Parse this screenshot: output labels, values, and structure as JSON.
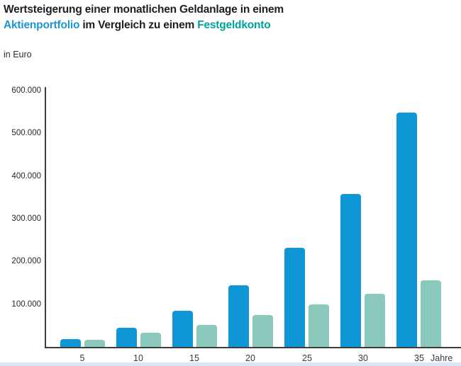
{
  "header": {
    "title_line1": "Wertsteigerung einer monatlichen Geldanlage in einem",
    "title_line2_highlight1": "Aktienportfolio",
    "title_line2_middle": " im Vergleich zu einem ",
    "title_line2_highlight2": "Festgeldkonto",
    "unit_label": "in Euro"
  },
  "colors": {
    "aktien_bar": "#0e96d6",
    "festgeld_bar": "#8cc9bd",
    "title_blue": "#1e96d4",
    "title_teal": "#00a39b",
    "title_dark": "#1d1e22",
    "axis_line": "#3d3d3d",
    "bottom_strip": "#d9e6f1"
  },
  "chart_data": {
    "type": "bar",
    "title": "Wertsteigerung einer monatlichen Geldanlage in einem Aktienportfolio im Vergleich zu einem Festgeldkonto",
    "ylabel": "in Euro",
    "xlabel": "Jahre",
    "x_axis_suffix": "Jahre",
    "categories": [
      "5",
      "10",
      "15",
      "20",
      "25",
      "30",
      "35"
    ],
    "series": [
      {
        "name": "Aktienportfolio",
        "color": "#0e96d6",
        "values": [
          19000,
          45000,
          85000,
          145000,
          232000,
          358000,
          548000
        ]
      },
      {
        "name": "Festgeldkonto",
        "color": "#8cc9bd",
        "values": [
          16000,
          33000,
          52000,
          74000,
          100000,
          125000,
          155000
        ]
      }
    ],
    "ylim": [
      0,
      600000
    ],
    "y_ticks": [
      {
        "value": 600000,
        "label": "600.000"
      },
      {
        "value": 500000,
        "label": "500.000"
      },
      {
        "value": 400000,
        "label": "400.000"
      },
      {
        "value": 300000,
        "label": "300.000"
      },
      {
        "value": 200000,
        "label": "200.000"
      },
      {
        "value": 100000,
        "label": "100.000"
      }
    ],
    "grid": false,
    "legend_position": "in-title-colored-words"
  }
}
